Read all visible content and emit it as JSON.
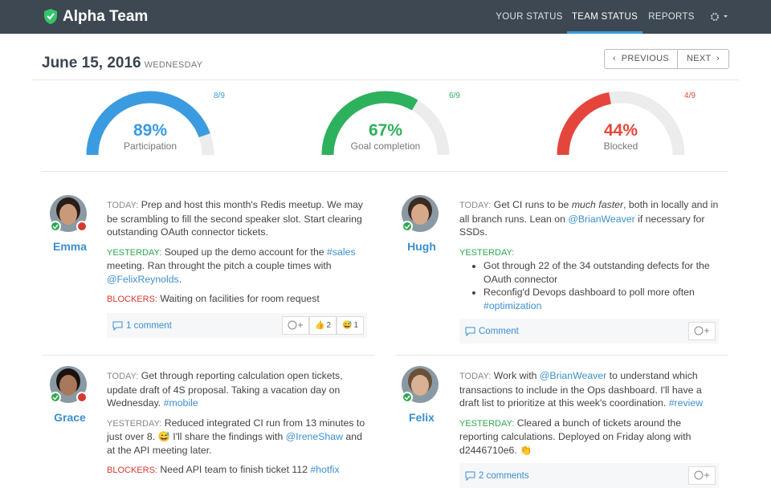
{
  "nav": {
    "brand": "Alpha Team",
    "items": [
      {
        "label": "YOUR STATUS",
        "active": false
      },
      {
        "label": "TEAM STATUS",
        "active": true
      },
      {
        "label": "REPORTS",
        "active": false
      }
    ]
  },
  "header": {
    "date": "June 15, 2016",
    "weekday": "WEDNESDAY",
    "prev": "PREVIOUS",
    "next": "NEXT"
  },
  "gauges": [
    {
      "value": 89,
      "value_label": "89%",
      "label": "Participation",
      "count": "8/9",
      "color": "#3a9be0"
    },
    {
      "value": 67,
      "value_label": "67%",
      "label": "Goal completion",
      "count": "6/9",
      "color": "#2db15c"
    },
    {
      "value": 44,
      "value_label": "44%",
      "label": "Blocked",
      "count": "4/9",
      "color": "#e5463c"
    }
  ],
  "people": [
    {
      "name": "Emma",
      "blocked": true,
      "skin": "#c99a7a",
      "hair": "#2a1c16",
      "sections": [
        {
          "label": "TODAY:",
          "kind": "today",
          "parts": [
            {
              "t": "Prep and host this month's Redis meetup. We may be scrambling to fill the second speaker slot. Start clearing outstanding OAuth connector tickets."
            }
          ]
        },
        {
          "label": "YESTERDAY:",
          "kind": "yesterday",
          "parts": [
            {
              "t": "Souped up the demo account for the "
            },
            {
              "t": "#sales",
              "style": "link"
            },
            {
              "t": " meeting. Ran throught the pitch a couple times with "
            },
            {
              "t": "@FelixReynolds",
              "style": "link"
            },
            {
              "t": "."
            }
          ]
        },
        {
          "label": "BLOCKERS:",
          "kind": "blockers",
          "parts": [
            {
              "t": "Waiting on facilities for room request"
            }
          ]
        }
      ],
      "footer": {
        "comment": "1 comment",
        "reactions": [
          {
            "emoji": "👍",
            "count": 2
          },
          {
            "emoji": "😅",
            "count": 1
          }
        ]
      }
    },
    {
      "name": "Hugh",
      "blocked": false,
      "skin": "#d6a98a",
      "hair": "#3b2a20",
      "sections": [
        {
          "label": "TODAY:",
          "kind": "today",
          "parts": [
            {
              "t": "Get CI runs to be "
            },
            {
              "t": "much faster",
              "style": "em"
            },
            {
              "t": ", both in locally and in all branch runs. Lean on "
            },
            {
              "t": "@BrianWeaver",
              "style": "link"
            },
            {
              "t": " if necessary for SSDs."
            }
          ]
        },
        {
          "label": "YESTERDAY:",
          "kind": "yesterday",
          "items": [
            [
              {
                "t": "Got through 22 of the 34 outstanding defects for the OAuth connector"
              }
            ],
            [
              {
                "t": "Reconfig'd Devops dashboard to poll more often "
              },
              {
                "t": "#optimization",
                "style": "link"
              }
            ]
          ]
        }
      ],
      "footer": {
        "comment": "Comment",
        "reactions": []
      }
    },
    {
      "name": "Grace",
      "blocked": true,
      "skin": "#a8785a",
      "hair": "#1a1210",
      "sections": [
        {
          "label": "TODAY:",
          "kind": "today",
          "parts": [
            {
              "t": "Get through reporting calculation open tickets, update draft of 4S proposal. Taking a vacation day on Wednesday. "
            },
            {
              "t": "#mobile",
              "style": "link"
            }
          ]
        },
        {
          "label": "YESTERDAY:",
          "kind": "today",
          "parts": [
            {
              "t": "Reduced integrated CI run from 13 minutes to just over 8. 😅 I'll share the findings with "
            },
            {
              "t": "@IreneShaw",
              "style": "link"
            },
            {
              "t": " and at the API meeting later."
            }
          ]
        },
        {
          "label": "BLOCKERS:",
          "kind": "blockers",
          "parts": [
            {
              "t": "Need API team to finish ticket 112 "
            },
            {
              "t": "#hotfix",
              "style": "link"
            }
          ]
        }
      ]
    },
    {
      "name": "Felix",
      "blocked": false,
      "skin": "#d9b196",
      "hair": "#6b5038",
      "sections": [
        {
          "label": "TODAY:",
          "kind": "today",
          "parts": [
            {
              "t": "Work with "
            },
            {
              "t": "@BrianWeaver",
              "style": "link"
            },
            {
              "t": " to understand which transactions to include in the Ops dashboard. I'll have a draft list to prioritize at this week's coordination. "
            },
            {
              "t": "#review",
              "style": "link"
            }
          ]
        },
        {
          "label": "YESTERDAY:",
          "kind": "yesterday",
          "parts": [
            {
              "t": "Cleared a bunch of tickets around the reporting calculations. Deployed on Friday along with d2446710e6. 👏"
            }
          ]
        }
      ],
      "footer": {
        "comment": "2 comments",
        "reactions": []
      }
    }
  ]
}
